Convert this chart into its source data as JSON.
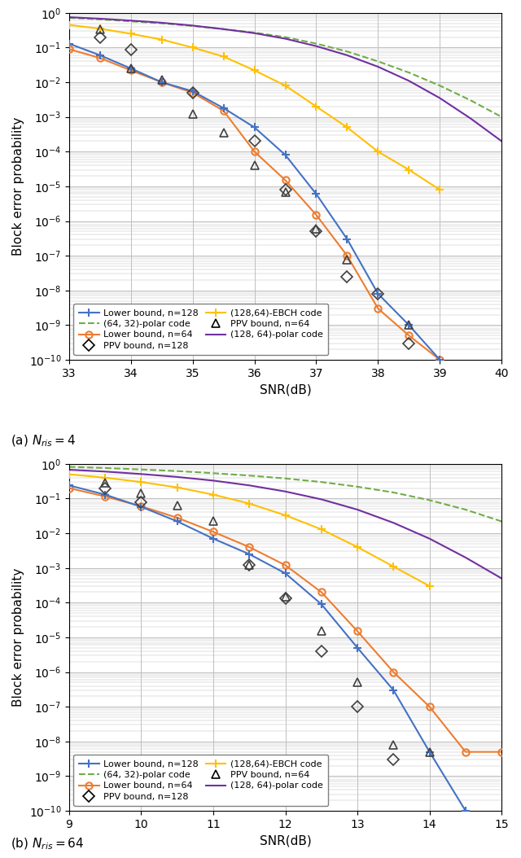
{
  "subplot_a": {
    "xlabel": "SNR(dB)",
    "ylabel": "Block error probability",
    "xlim": [
      33,
      40
    ],
    "ylim_log": [
      -10,
      0
    ],
    "xticks": [
      33,
      34,
      35,
      36,
      37,
      38,
      39,
      40
    ],
    "caption": "(a) $N_{ris} = 4$",
    "lower_bound_128": {
      "x": [
        33.0,
        33.5,
        34.0,
        34.5,
        35.0,
        35.5,
        36.0,
        36.5,
        37.0,
        37.5,
        38.0,
        38.5,
        39.0
      ],
      "y": [
        0.13,
        0.06,
        0.025,
        0.01,
        0.0055,
        0.0018,
        0.0005,
        8e-05,
        6e-06,
        3e-07,
        8e-09,
        1e-09,
        1e-10
      ]
    },
    "lower_bound_64": {
      "x": [
        33.0,
        33.5,
        34.0,
        34.5,
        35.0,
        35.5,
        36.0,
        36.5,
        37.0,
        37.5,
        38.0,
        38.5,
        39.0
      ],
      "y": [
        0.09,
        0.05,
        0.022,
        0.01,
        0.005,
        0.0015,
        0.0001,
        1.5e-05,
        1.5e-06,
        1e-07,
        3e-09,
        5e-10,
        1e-10
      ]
    },
    "ebch_code": {
      "x": [
        33.0,
        33.5,
        34.0,
        34.5,
        35.0,
        35.5,
        36.0,
        36.5,
        37.0,
        37.5,
        38.0,
        38.5,
        39.0
      ],
      "y": [
        0.45,
        0.35,
        0.25,
        0.17,
        0.1,
        0.055,
        0.022,
        0.008,
        0.002,
        0.0005,
        0.0001,
        3e-05,
        8e-06
      ]
    },
    "polar_128_64": {
      "x": [
        33.0,
        33.5,
        34.0,
        34.5,
        35.0,
        35.5,
        36.0,
        36.5,
        37.0,
        37.5,
        38.0,
        38.5,
        39.0,
        39.5,
        40.0
      ],
      "y": [
        0.75,
        0.68,
        0.6,
        0.52,
        0.43,
        0.34,
        0.26,
        0.18,
        0.11,
        0.06,
        0.028,
        0.011,
        0.0035,
        0.0009,
        0.0002
      ]
    },
    "polar_64_32": {
      "x": [
        33.0,
        33.5,
        34.0,
        34.5,
        35.0,
        35.5,
        36.0,
        36.5,
        37.0,
        37.5,
        38.0,
        38.5,
        39.0,
        39.5,
        40.0
      ],
      "y": [
        0.72,
        0.65,
        0.57,
        0.5,
        0.42,
        0.34,
        0.27,
        0.2,
        0.13,
        0.077,
        0.04,
        0.019,
        0.008,
        0.003,
        0.001
      ]
    },
    "ppv_128": {
      "x": [
        33.5,
        34.0,
        35.0,
        36.0,
        36.5,
        37.0,
        37.5,
        38.0,
        38.5
      ],
      "y": [
        0.2,
        0.085,
        0.005,
        0.0002,
        8e-06,
        5e-07,
        2.5e-08,
        8e-09,
        3e-10
      ]
    },
    "ppv_64": {
      "x": [
        33.5,
        34.0,
        34.5,
        35.0,
        35.5,
        36.0,
        36.5,
        37.0,
        37.5,
        38.5
      ],
      "y": [
        0.33,
        0.025,
        0.012,
        0.0012,
        0.00035,
        4e-05,
        7e-06,
        6e-07,
        7.5e-08,
        1e-09
      ]
    }
  },
  "subplot_b": {
    "xlabel": "SNR(dB)",
    "ylabel": "Block error probability",
    "xlim": [
      9,
      15
    ],
    "ylim_log": [
      -10,
      0
    ],
    "xticks": [
      9,
      10,
      11,
      12,
      13,
      14,
      15
    ],
    "caption": "(b) $N_{ris} = 64$",
    "lower_bound_128": {
      "x": [
        9.0,
        9.5,
        10.0,
        10.5,
        11.0,
        11.5,
        12.0,
        12.5,
        13.0,
        13.5,
        14.0,
        14.5
      ],
      "y": [
        0.24,
        0.13,
        0.058,
        0.022,
        0.007,
        0.0025,
        0.0007,
        9e-05,
        5e-06,
        3e-07,
        5e-09,
        1e-10
      ]
    },
    "lower_bound_64": {
      "x": [
        9.0,
        9.5,
        10.0,
        10.5,
        11.0,
        11.5,
        12.0,
        12.5,
        13.0,
        13.5,
        14.0,
        14.5,
        15.0
      ],
      "y": [
        0.2,
        0.115,
        0.06,
        0.028,
        0.011,
        0.004,
        0.0012,
        0.0002,
        1.5e-05,
        1e-06,
        1e-07,
        5e-09,
        5e-09
      ]
    },
    "ebch_code": {
      "x": [
        9.0,
        9.5,
        10.0,
        10.5,
        11.0,
        11.5,
        12.0,
        12.5,
        13.0,
        13.5,
        14.0
      ],
      "y": [
        0.5,
        0.4,
        0.3,
        0.21,
        0.13,
        0.072,
        0.033,
        0.013,
        0.004,
        0.0011,
        0.0003
      ]
    },
    "polar_128_64": {
      "x": [
        9.0,
        9.5,
        10.0,
        10.5,
        11.0,
        11.5,
        12.0,
        12.5,
        13.0,
        13.5,
        14.0,
        14.5,
        15.0
      ],
      "y": [
        0.68,
        0.6,
        0.51,
        0.42,
        0.33,
        0.24,
        0.16,
        0.095,
        0.048,
        0.02,
        0.007,
        0.002,
        0.0005
      ]
    },
    "polar_64_32": {
      "x": [
        9.0,
        9.5,
        10.0,
        10.5,
        11.0,
        11.5,
        12.0,
        12.5,
        13.0,
        13.5,
        14.0,
        14.5,
        15.0
      ],
      "y": [
        0.82,
        0.76,
        0.69,
        0.62,
        0.54,
        0.46,
        0.38,
        0.3,
        0.22,
        0.15,
        0.09,
        0.048,
        0.022
      ]
    },
    "ppv_128": {
      "x": [
        9.5,
        10.0,
        11.5,
        12.0,
        12.5,
        13.0,
        13.5
      ],
      "y": [
        0.2,
        0.08,
        0.0012,
        0.00013,
        4e-06,
        1e-07,
        3e-09
      ]
    },
    "ppv_64": {
      "x": [
        9.5,
        10.0,
        10.5,
        11.0,
        11.5,
        12.0,
        12.5,
        13.0,
        13.5,
        14.0
      ],
      "y": [
        0.28,
        0.14,
        0.062,
        0.022,
        0.0012,
        0.00015,
        1.5e-05,
        5e-07,
        8e-09,
        5e-09
      ]
    }
  },
  "colors": {
    "lower_bound_128": "#4472C4",
    "lower_bound_64": "#ED7D31",
    "ebch_code": "#FFC000",
    "polar_128_64": "#7030A0",
    "polar_64_32": "#70AD47",
    "ppv_128": "#404040",
    "ppv_64": "#404040"
  },
  "background_color": "#FFFFFF",
  "grid_color": "#C0C0C0"
}
